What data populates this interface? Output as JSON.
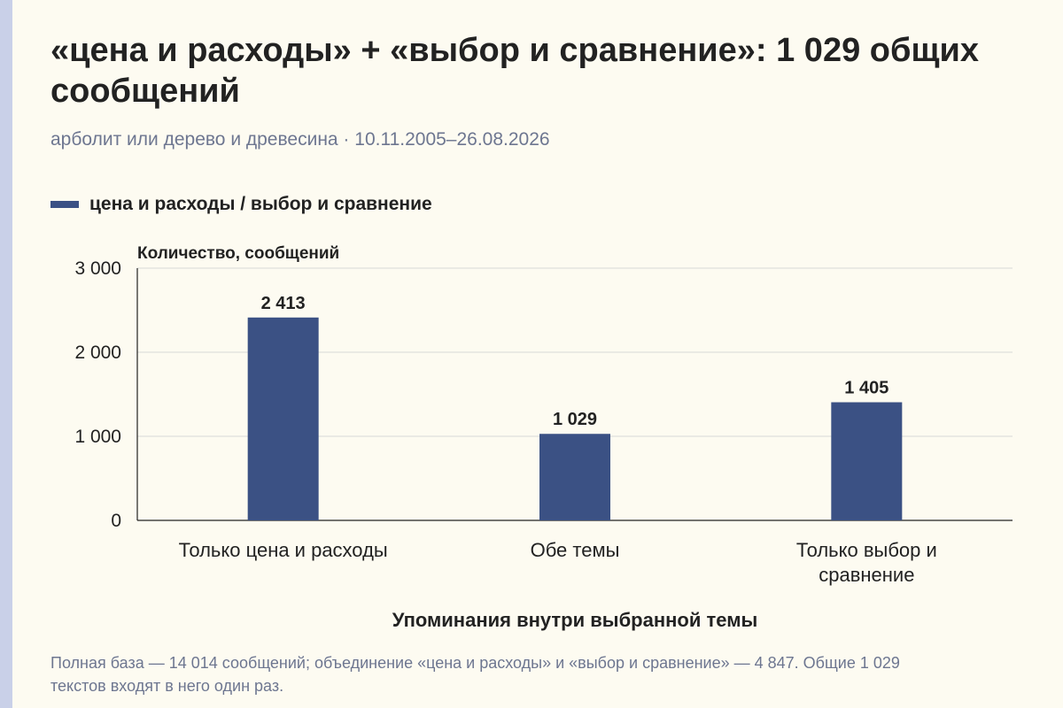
{
  "title": "«цена и расходы» + «выбор и сравнение»: 1 029 общих сообщений",
  "subtitle": "арболит или дерево и древесина · 10.11.2005–26.08.2026",
  "footnote": "Полная база — 14 014 сообщений; объединение «цена и расходы» и «выбор и сравнение» — 4 847. Общие 1 029 текстов входят в него один раз.",
  "colors": {
    "bar": "#3b5184",
    "background": "#fdfbf1",
    "grid": "#d8d8d8"
  },
  "chart_data": {
    "type": "bar",
    "categories": [
      [
        "Только цена и расходы"
      ],
      [
        "Обе темы"
      ],
      [
        "Только выбор и",
        "сравнение"
      ]
    ],
    "series": [
      {
        "name": "цена и расходы / выбор и сравнение",
        "values": [
          2413,
          1029,
          1405
        ],
        "value_labels": [
          "2 413",
          "1 029",
          "1 405"
        ]
      }
    ],
    "ylabel": "Количество, сообщений",
    "xlabel": "Упоминания внутри выбранной темы",
    "ylim": [
      0,
      3000
    ],
    "yticks": [
      0,
      1000,
      2000,
      3000
    ],
    "ytick_labels": [
      "0",
      "1 000",
      "2 000",
      "3 000"
    ],
    "grid": true,
    "legend": "top-left"
  }
}
